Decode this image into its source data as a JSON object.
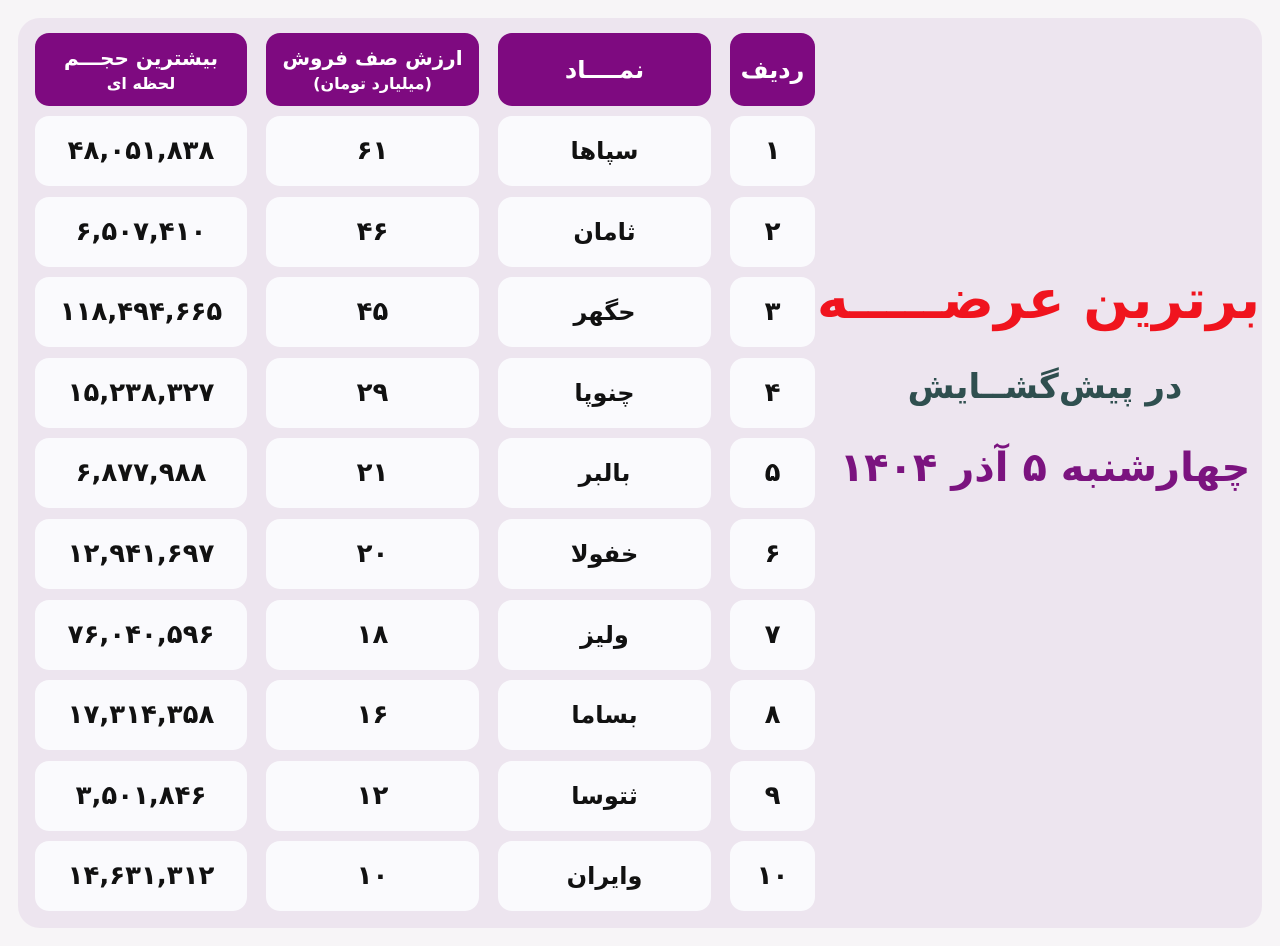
{
  "title": {
    "main": "برترین عرضـــــه",
    "subtitle": "در پیش‌گشــایش",
    "date": "چهارشنبه ۵ آذر ۱۴۰۴"
  },
  "colors": {
    "header_bg": "#7e0a80",
    "title": "#f0141e",
    "subtitle": "#2f4f4f",
    "date": "#7b137f"
  },
  "table": {
    "headers": {
      "rank": "ردیف",
      "symbol": "نمــــاد",
      "sell_queue_value_l1": "ارزش صف فروش",
      "sell_queue_value_l2": "(میلیارد تومان)",
      "max_volume_l1": "بیشترین حجـــم",
      "max_volume_l2": "لحظه ای"
    },
    "rows": [
      {
        "rank": "۱",
        "symbol": "سپاها",
        "value": "۶۱",
        "volume": "۴۸,۰۵۱,۸۳۸"
      },
      {
        "rank": "۲",
        "symbol": "ثامان",
        "value": "۴۶",
        "volume": "۶,۵۰۷,۴۱۰"
      },
      {
        "rank": "۳",
        "symbol": "حگهر",
        "value": "۴۵",
        "volume": "۱۱۸,۴۹۴,۶۶۵"
      },
      {
        "rank": "۴",
        "symbol": "چنوپا",
        "value": "۲۹",
        "volume": "۱۵,۲۳۸,۳۲۷"
      },
      {
        "rank": "۵",
        "symbol": "بالبر",
        "value": "۲۱",
        "volume": "۶,۸۷۷,۹۸۸"
      },
      {
        "rank": "۶",
        "symbol": "خفولا",
        "value": "۲۰",
        "volume": "۱۲,۹۴۱,۶۹۷"
      },
      {
        "rank": "۷",
        "symbol": "ولیز",
        "value": "۱۸",
        "volume": "۷۶,۰۴۰,۵۹۶"
      },
      {
        "rank": "۸",
        "symbol": "بساما",
        "value": "۱۶",
        "volume": "۱۷,۳۱۴,۳۵۸"
      },
      {
        "rank": "۹",
        "symbol": "ثتوسا",
        "value": "۱۲",
        "volume": "۳,۵۰۱,۸۴۶"
      },
      {
        "rank": "۱۰",
        "symbol": "وایران",
        "value": "۱۰",
        "volume": "۱۴,۶۳۱,۳۱۲"
      }
    ]
  }
}
